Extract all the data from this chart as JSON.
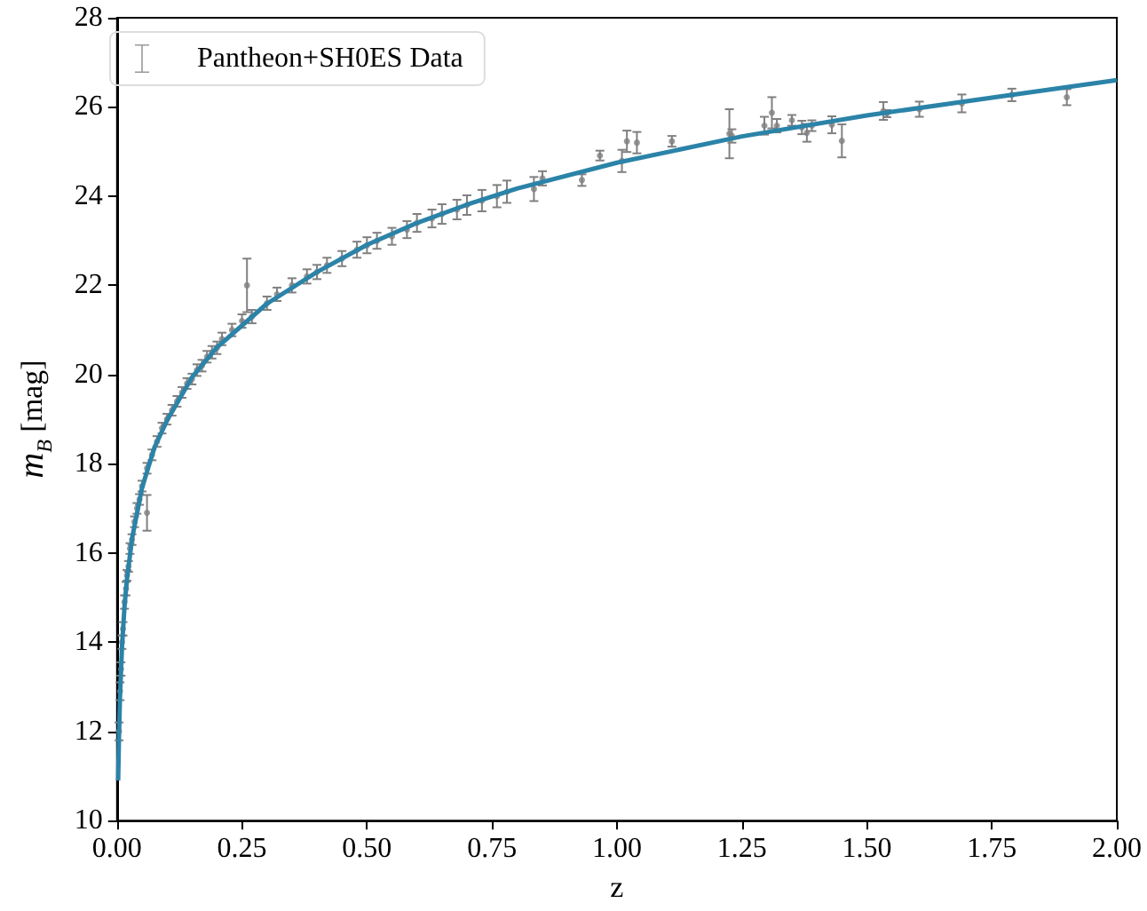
{
  "chart_data": {
    "type": "scatter",
    "xlabel": "z",
    "ylabel": "m$_{B}$ [mag]",
    "xlim": [
      0,
      2
    ],
    "xticks": [
      {
        "value": 0,
        "label": "0.00"
      },
      {
        "value": 0.25,
        "label": "0.25"
      },
      {
        "value": 0.5,
        "label": "0.50"
      },
      {
        "value": 0.75,
        "label": "0.75"
      },
      {
        "value": 1,
        "label": "1.00"
      },
      {
        "value": 1.25,
        "label": "1.25"
      },
      {
        "value": 1.5,
        "label": "1.50"
      },
      {
        "value": 1.75,
        "label": "1.75"
      },
      {
        "value": 2,
        "label": "2.00"
      }
    ],
    "ylim": [
      10,
      28
    ],
    "yticks": [
      10,
      12,
      14,
      16,
      18,
      20,
      22,
      24,
      26,
      28
    ],
    "grid": false,
    "legend": "top left",
    "series": [
      {
        "name": "Pantheon+SH0ES Data",
        "color": "#808080",
        "marker": "circle",
        "x": [
          0.004,
          0.006,
          0.008,
          0.01,
          0.012,
          0.015,
          0.018,
          0.02,
          0.023,
          0.026,
          0.03,
          0.035,
          0.04,
          0.045,
          0.05,
          0.06,
          0.06,
          0.07,
          0.08,
          0.09,
          0.1,
          0.11,
          0.12,
          0.13,
          0.14,
          0.15,
          0.16,
          0.17,
          0.18,
          0.19,
          0.2,
          0.21,
          0.23,
          0.25,
          0.26,
          0.27,
          0.3,
          0.32,
          0.35,
          0.38,
          0.4,
          0.42,
          0.45,
          0.48,
          0.5,
          0.52,
          0.55,
          0.58,
          0.6,
          0.63,
          0.65,
          0.68,
          0.7,
          0.73,
          0.76,
          0.78,
          0.834,
          0.851,
          0.93,
          0.966,
          1.01,
          1.02,
          1.04,
          1.11,
          1.225,
          1.23,
          1.295,
          1.31,
          1.32,
          1.35,
          1.37,
          1.38,
          1.39,
          1.43,
          1.45,
          1.533,
          1.54,
          1.605,
          1.69,
          1.79,
          1.9
        ],
        "values": [
          12.0,
          12.9,
          13.4,
          14.0,
          14.3,
          14.9,
          15.2,
          15.5,
          15.7,
          16.1,
          16.3,
          16.7,
          17.0,
          17.2,
          17.5,
          16.9,
          17.9,
          18.2,
          18.5,
          18.8,
          19.0,
          19.2,
          19.4,
          19.6,
          19.8,
          19.9,
          20.1,
          20.2,
          20.4,
          20.5,
          20.6,
          20.8,
          21.0,
          21.2,
          22.0,
          21.3,
          21.6,
          21.8,
          22.0,
          22.2,
          22.3,
          22.45,
          22.6,
          22.8,
          22.9,
          23.0,
          23.1,
          23.25,
          23.4,
          23.5,
          23.6,
          23.7,
          23.8,
          23.9,
          24.0,
          24.1,
          24.16,
          24.4,
          24.36,
          24.91,
          24.79,
          25.23,
          25.2,
          25.23,
          25.4,
          25.35,
          25.58,
          25.87,
          25.58,
          25.7,
          25.54,
          25.42,
          25.58,
          25.6,
          25.24,
          25.91,
          25.85,
          25.95,
          26.08,
          26.27,
          26.22
        ],
        "errors": [
          0.2,
          0.2,
          0.15,
          0.15,
          0.15,
          0.15,
          0.15,
          0.12,
          0.12,
          0.12,
          0.12,
          0.12,
          0.12,
          0.12,
          0.12,
          0.4,
          0.12,
          0.12,
          0.12,
          0.12,
          0.12,
          0.12,
          0.12,
          0.12,
          0.12,
          0.12,
          0.13,
          0.13,
          0.13,
          0.14,
          0.14,
          0.14,
          0.14,
          0.15,
          0.6,
          0.15,
          0.15,
          0.15,
          0.16,
          0.16,
          0.16,
          0.17,
          0.17,
          0.18,
          0.18,
          0.18,
          0.19,
          0.19,
          0.2,
          0.2,
          0.22,
          0.22,
          0.22,
          0.24,
          0.25,
          0.25,
          0.27,
          0.16,
          0.13,
          0.11,
          0.25,
          0.24,
          0.24,
          0.12,
          0.55,
          0.15,
          0.2,
          0.35,
          0.15,
          0.12,
          0.15,
          0.2,
          0.12,
          0.19,
          0.37,
          0.2,
          0.08,
          0.17,
          0.2,
          0.14,
          0.18
        ]
      },
      {
        "type": "line",
        "color": "#2b83a8",
        "marker": "none",
        "x": [
          0.0023,
          0.004,
          0.006,
          0.01,
          0.015,
          0.02,
          0.03,
          0.05,
          0.075,
          0.1,
          0.15,
          0.2,
          0.3,
          0.4,
          0.5,
          0.6,
          0.7,
          0.8,
          1.0,
          1.25,
          1.5,
          1.75,
          2.0
        ],
        "values": [
          10.9,
          11.9,
          12.78,
          13.9,
          14.8,
          15.42,
          16.32,
          17.46,
          18.37,
          18.97,
          19.94,
          20.61,
          21.59,
          22.3,
          22.91,
          23.4,
          23.81,
          24.17,
          24.75,
          25.34,
          25.81,
          26.21,
          26.6
        ]
      }
    ]
  }
}
